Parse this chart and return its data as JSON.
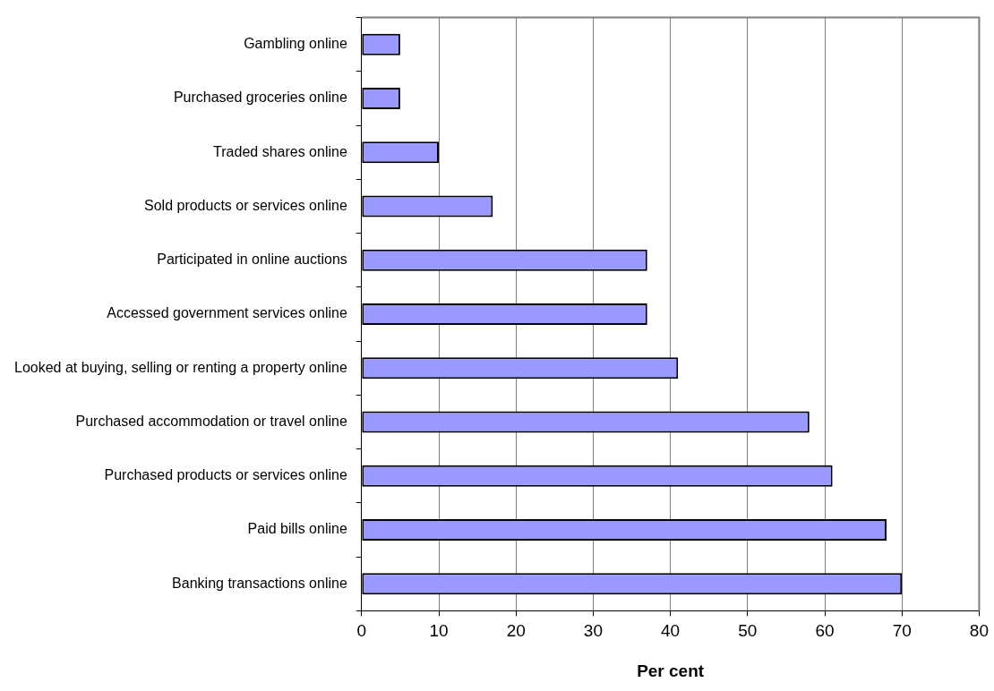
{
  "chart_data": {
    "type": "bar",
    "orientation": "horizontal",
    "xlabel": "Per cent",
    "categories": [
      "Gambling online",
      "Purchased groceries online",
      "Traded shares online",
      "Sold products or services online",
      "Participated in online auctions",
      "Accessed government services online",
      "Looked at buying, selling or renting a property online",
      "Purchased accommodation or travel online",
      "Purchased products or services online",
      "Paid bills online",
      "Banking transactions online"
    ],
    "values": [
      5,
      5,
      10,
      17,
      37,
      37,
      41,
      58,
      61,
      68,
      70
    ],
    "color": "#9999ff",
    "xlim": [
      0,
      80
    ],
    "xticks": [
      0,
      10,
      20,
      30,
      40,
      50,
      60,
      70,
      80
    ],
    "grid": "x",
    "legend": false
  }
}
